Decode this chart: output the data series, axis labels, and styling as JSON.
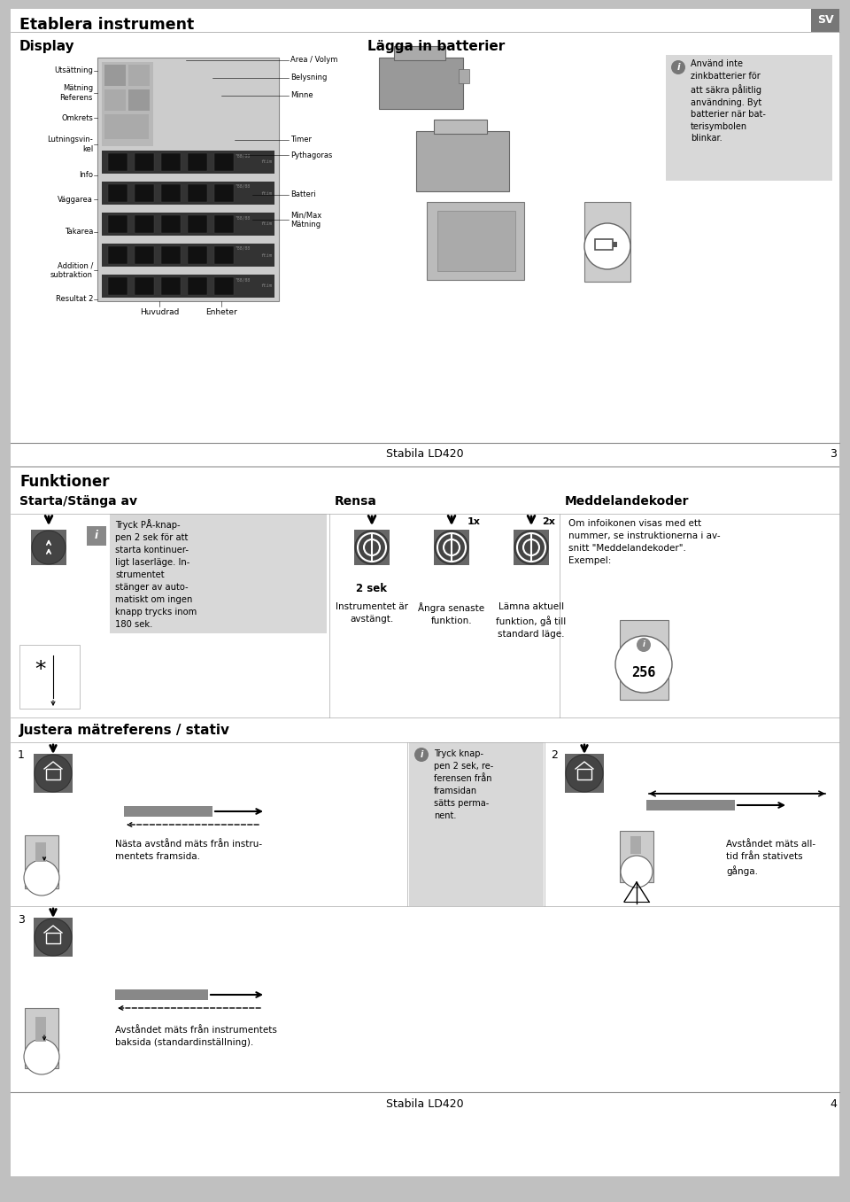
{
  "bg_color": "#c0c0c0",
  "white": "#ffffff",
  "light_gray": "#e0e0e0",
  "dark_gray": "#555555",
  "black": "#111111",
  "med_gray": "#888888",
  "panel_gray": "#d0d0d0",
  "btn_dark": "#444444",
  "btn_mid": "#666666",
  "page_top_title": "Etablera instrument",
  "sv_label": "SV",
  "display_title": "Display",
  "battery_title": "Lägga in batterier",
  "battery_note": "Använd inte\nzinkbatterier för\natt säkra pålitlig\nanvändning. Byt\nbatterier när bat-\nterisymbolen\nblinkar.",
  "footer1": "Stabila LD420",
  "page3": "3",
  "page4": "4",
  "section2_title": "Funktioner",
  "starta_title": "Starta/Stänga av",
  "rensa_title": "Rensa",
  "medd_title": "Meddelandekoder",
  "starta_text": "Tryck PÅ-knap-\npen 2 sek för att\nstarta kontinuer-\nligt laserläge. In-\nstrumentet\nstänger av auto-\nmatiskt om ingen\nknapp trycks inom\n180 sek.",
  "rensa_label1": "2 sek",
  "rensa_text1": "Instrumentet är\navstängt.",
  "rensa_label2": "1x",
  "rensa_text2": "Ångra senaste\nfunktion.",
  "rensa_label3": "2x",
  "rensa_text3": "Lämna aktuell\nfunktion, gå till\nstandard läge.",
  "medd_text": "Om infoikonen visas med ett\nnummer, se instruktionerna i av-\nsnitt \"Meddelandekoder\".\nExempel:",
  "medd_number": "256",
  "justera_title": "Justera mätreferens / stativ",
  "justera_text1": "Nästa avstånd mäts från instru-\nmentets framsida.",
  "justera_note": "Tryck knap-\npen 2 sek, re-\nferensen från\nframsidan\nsätts perma-\nnent.",
  "justera_text2": "Avståndet mäts all-\ntid från stativets\ngånga.",
  "justera_text3": "Avståndet mäts från instrumentets\nbaksida (standardinställning).",
  "display_labels_left": [
    "Utsättning",
    "Mätning\nReferens",
    "Omkrets",
    "Lutningsvin-\nkel",
    "Info",
    "Väggarea",
    "Takarea",
    "Addition /\nsubtraktion",
    "Resultat 2"
  ],
  "display_labels_right": [
    "Area / Volym",
    "Belysning",
    "Minne",
    "Timer",
    "Pythagoras",
    "Batteri",
    "Min/Max\nMätning"
  ],
  "bottom_labels": [
    "Huvudrad",
    "Enheter"
  ]
}
